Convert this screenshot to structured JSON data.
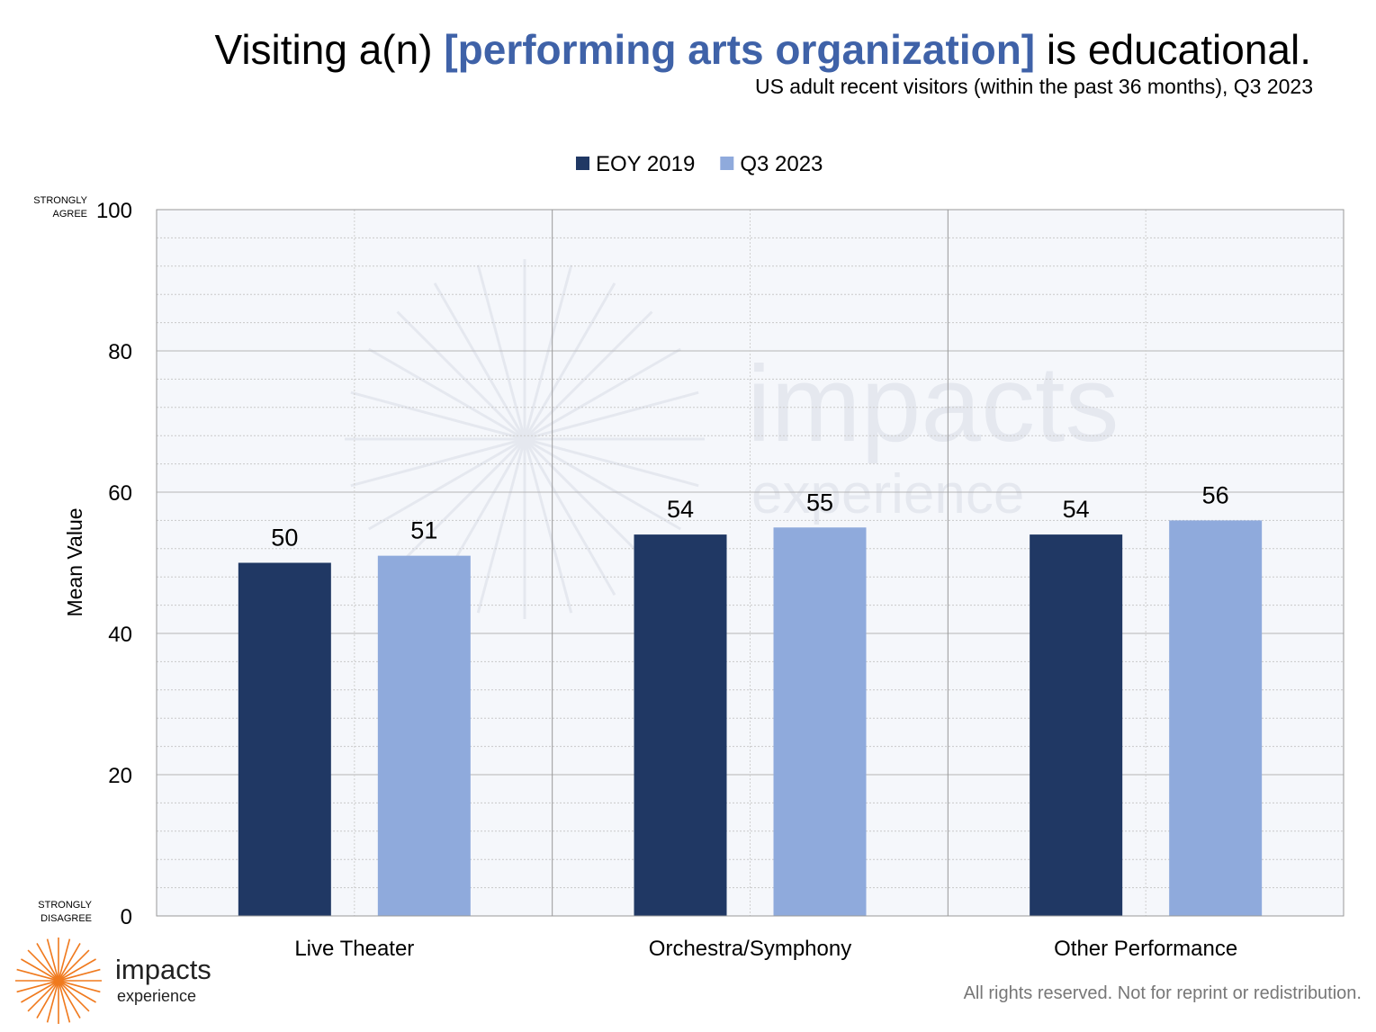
{
  "title": {
    "prefix": "Visiting a(n) ",
    "highlight": "[performing arts organization]",
    "suffix": " is educational."
  },
  "subtitle": "US adult recent visitors (within the past 36 months), Q3 2023",
  "footer": {
    "rights": "All rights reserved. Not for reprint or redistribution.",
    "logo_word": "impacts",
    "logo_sub": "experience"
  },
  "watermark": {
    "word": "impacts",
    "sub": "experience"
  },
  "colors": {
    "highlight": "#3f62a8",
    "eoy2019": "#203864",
    "q32023": "#8faadc",
    "plot_bg": "#f5f7fb",
    "logo_orange": "#f07a1e"
  },
  "chart_data": {
    "type": "bar",
    "categories": [
      "Live Theater",
      "Orchestra/Symphony",
      "Other Performance"
    ],
    "series": [
      {
        "name": "EOY 2019",
        "values": [
          50,
          54,
          54
        ],
        "color": "#203864"
      },
      {
        "name": "Q3 2023",
        "values": [
          51,
          55,
          56
        ],
        "color": "#8faadc"
      }
    ],
    "ylabel": "Mean Value",
    "ylim": [
      0,
      100
    ],
    "yticks": [
      0,
      20,
      40,
      60,
      80,
      100
    ],
    "ytick_labels": [
      "0",
      "20",
      "40",
      "60",
      "80",
      "100"
    ],
    "y_top_note": [
      "STRONGLY",
      "AGREE"
    ],
    "y_bottom_note": [
      "STRONGLY",
      "DISAGREE"
    ],
    "legend_position": "top-center",
    "grid": true
  }
}
